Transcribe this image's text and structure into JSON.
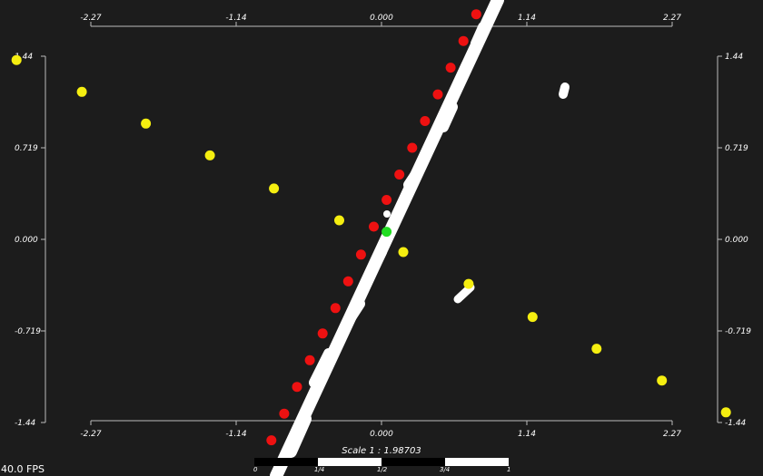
{
  "axes": {
    "x_ticks": [
      "-2.27",
      "-1.14",
      "0.000",
      "1.14",
      "2.27"
    ],
    "y_ticks": [
      "1.44",
      "0.719",
      "0.000",
      "-0.719",
      "-1.44"
    ],
    "x_range": [
      -2.27,
      2.27
    ],
    "y_range": [
      -1.44,
      1.44
    ]
  },
  "status": {
    "fps": "40.0 FPS",
    "scale_label": "Scale 1 : 1.98703"
  },
  "scalebar": {
    "labels": [
      "0",
      "1/4",
      "1/2",
      "3/4",
      "1"
    ]
  },
  "colors": {
    "background": "#1c1c1c",
    "axis": "#bbbbbb",
    "cloud": "#ffffff",
    "fit": "#ee1111",
    "samples": "#f5ee10",
    "center": "#22dd22"
  },
  "points": {
    "yellow": [
      [
        -2.85,
        1.41
      ],
      [
        -2.34,
        1.16
      ],
      [
        -1.84,
        0.91
      ],
      [
        -1.34,
        0.66
      ],
      [
        -0.84,
        0.4
      ],
      [
        -0.33,
        0.15
      ],
      [
        0.17,
        -0.1
      ],
      [
        0.68,
        -0.35
      ],
      [
        1.18,
        -0.61
      ],
      [
        1.68,
        -0.86
      ],
      [
        2.19,
        -1.11
      ],
      [
        2.69,
        -1.36
      ]
    ],
    "red": [
      [
        0.74,
        1.77
      ],
      [
        0.64,
        1.56
      ],
      [
        0.54,
        1.35
      ],
      [
        0.44,
        1.14
      ],
      [
        0.34,
        0.93
      ],
      [
        0.24,
        0.72
      ],
      [
        0.14,
        0.51
      ],
      [
        0.04,
        0.31
      ],
      [
        -0.06,
        0.1
      ],
      [
        -0.16,
        -0.12
      ],
      [
        -0.26,
        -0.33
      ],
      [
        -0.36,
        -0.54
      ],
      [
        -0.46,
        -0.74
      ],
      [
        -0.56,
        -0.95
      ],
      [
        -0.66,
        -1.16
      ],
      [
        -0.76,
        -1.37
      ],
      [
        -0.86,
        -1.58
      ]
    ],
    "green": [
      [
        0.04,
        0.06
      ]
    ]
  }
}
